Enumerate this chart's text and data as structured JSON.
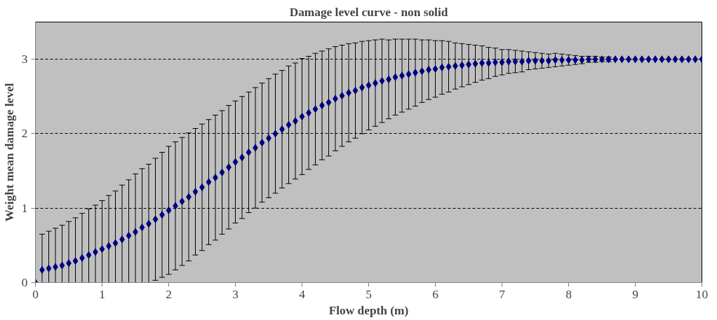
{
  "chart_data": {
    "type": "scatter",
    "title": "Damage level curve - non solid",
    "xlabel": "Flow depth (m)",
    "ylabel": "Weight mean damage level",
    "x": [
      0,
      0.1,
      0.2,
      0.3,
      0.4,
      0.5,
      0.6,
      0.7,
      0.8,
      0.9,
      1,
      1.1,
      1.2,
      1.3,
      1.4,
      1.5,
      1.6,
      1.7,
      1.8,
      1.9,
      2,
      2.1,
      2.2,
      2.3,
      2.4,
      2.5,
      2.6,
      2.7,
      2.8,
      2.9,
      3,
      3.1,
      3.2,
      3.3,
      3.4,
      3.5,
      3.6,
      3.7,
      3.8,
      3.9,
      4,
      4.1,
      4.2,
      4.3,
      4.4,
      4.5,
      4.6,
      4.7,
      4.8,
      4.9,
      5,
      5.1,
      5.2,
      5.3,
      5.4,
      5.5,
      5.6,
      5.7,
      5.8,
      5.9,
      6,
      6.1,
      6.2,
      6.3,
      6.4,
      6.5,
      6.6,
      6.7,
      6.8,
      6.9,
      7,
      7.1,
      7.2,
      7.3,
      7.4,
      7.5,
      7.6,
      7.7,
      7.8,
      7.9,
      8,
      8.1,
      8.2,
      8.3,
      8.4,
      8.5,
      8.6,
      8.7,
      8.8,
      8.9,
      9,
      9.1,
      9.2,
      9.3,
      9.4,
      9.5,
      9.6,
      9.7,
      9.8,
      9.9,
      10
    ],
    "series": [
      {
        "color": "#000080",
        "values": [
          0,
          0.17,
          0.19,
          0.21,
          0.23,
          0.26,
          0.29,
          0.33,
          0.37,
          0.41,
          0.45,
          0.49,
          0.53,
          0.58,
          0.63,
          0.68,
          0.74,
          0.79,
          0.85,
          0.91,
          0.97,
          1.03,
          1.09,
          1.15,
          1.22,
          1.28,
          1.35,
          1.41,
          1.48,
          1.55,
          1.62,
          1.68,
          1.75,
          1.81,
          1.88,
          1.94,
          2.0,
          2.06,
          2.12,
          2.17,
          2.23,
          2.28,
          2.33,
          2.38,
          2.42,
          2.47,
          2.51,
          2.55,
          2.58,
          2.62,
          2.65,
          2.68,
          2.71,
          2.73,
          2.76,
          2.78,
          2.8,
          2.82,
          2.84,
          2.86,
          2.87,
          2.89,
          2.9,
          2.91,
          2.92,
          2.93,
          2.94,
          2.95,
          2.95,
          2.96,
          2.96,
          2.97,
          2.97,
          2.97,
          2.98,
          2.98,
          2.98,
          2.98,
          2.99,
          2.99,
          2.99,
          2.99,
          2.99,
          3.0,
          3.0,
          3.0,
          3.0,
          3.0,
          3.0,
          3.0,
          3.0,
          3.0,
          3.0,
          3.0,
          3.0,
          3.0,
          3.0,
          3.0,
          3.0,
          3.0,
          3.0
        ],
        "errors": [
          null,
          [
            0,
            0.65
          ],
          [
            0,
            0.69
          ],
          [
            0,
            0.73
          ],
          [
            0,
            0.77
          ],
          [
            0,
            0.82
          ],
          [
            0,
            0.87
          ],
          [
            0,
            0.93
          ],
          [
            0,
            0.99
          ],
          [
            0,
            1.04
          ],
          [
            0,
            1.1
          ],
          [
            0,
            1.17
          ],
          [
            0,
            1.23
          ],
          [
            0,
            1.31
          ],
          [
            0,
            1.38
          ],
          [
            0,
            1.46
          ],
          [
            0,
            1.53
          ],
          [
            0,
            1.59
          ],
          [
            0.03,
            1.67
          ],
          [
            0.07,
            1.75
          ],
          [
            0.11,
            1.83
          ],
          [
            0.17,
            1.89
          ],
          [
            0.23,
            1.95
          ],
          [
            0.29,
            2.01
          ],
          [
            0.37,
            2.07
          ],
          [
            0.43,
            2.13
          ],
          [
            0.51,
            2.19
          ],
          [
            0.57,
            2.25
          ],
          [
            0.65,
            2.31
          ],
          [
            0.72,
            2.38
          ],
          [
            0.8,
            2.44
          ],
          [
            0.86,
            2.5
          ],
          [
            0.94,
            2.56
          ],
          [
            1.0,
            2.62
          ],
          [
            1.08,
            2.68
          ],
          [
            1.14,
            2.74
          ],
          [
            1.2,
            2.8
          ],
          [
            1.27,
            2.85
          ],
          [
            1.33,
            2.91
          ],
          [
            1.39,
            2.95
          ],
          [
            1.45,
            3.01
          ],
          [
            1.52,
            3.04
          ],
          [
            1.58,
            3.08
          ],
          [
            1.65,
            3.11
          ],
          [
            1.7,
            3.14
          ],
          [
            1.77,
            3.17
          ],
          [
            1.83,
            3.19
          ],
          [
            1.89,
            3.21
          ],
          [
            1.94,
            3.22
          ],
          [
            2.0,
            3.24
          ],
          [
            2.05,
            3.25
          ],
          [
            2.1,
            3.26
          ],
          [
            2.15,
            3.27
          ],
          [
            2.2,
            3.26
          ],
          [
            2.25,
            3.27
          ],
          [
            2.29,
            3.27
          ],
          [
            2.33,
            3.27
          ],
          [
            2.37,
            3.27
          ],
          [
            2.42,
            3.26
          ],
          [
            2.46,
            3.26
          ],
          [
            2.49,
            3.25
          ],
          [
            2.53,
            3.25
          ],
          [
            2.56,
            3.24
          ],
          [
            2.6,
            3.22
          ],
          [
            2.63,
            3.21
          ],
          [
            2.66,
            3.2
          ],
          [
            2.69,
            3.19
          ],
          [
            2.72,
            3.18
          ],
          [
            2.74,
            3.16
          ],
          [
            2.77,
            3.15
          ],
          [
            2.79,
            3.13
          ],
          [
            2.81,
            3.13
          ],
          [
            2.82,
            3.12
          ],
          [
            2.83,
            3.11
          ],
          [
            2.86,
            3.1
          ],
          [
            2.87,
            3.09
          ],
          [
            2.88,
            3.08
          ],
          [
            2.89,
            3.07
          ],
          [
            2.9,
            3.08
          ],
          [
            2.91,
            3.07
          ],
          [
            2.92,
            3.06
          ],
          [
            2.93,
            3.05
          ],
          [
            2.94,
            3.04
          ],
          [
            2.96,
            3.04
          ],
          [
            2.96,
            3.04
          ],
          [
            2.97,
            3.03
          ],
          [
            2.97,
            3.03
          ],
          null,
          null,
          null,
          null,
          null,
          null,
          null,
          null,
          null,
          null,
          null,
          null,
          null,
          null
        ]
      }
    ],
    "xlim": [
      0,
      10
    ],
    "xticks": [
      0,
      1,
      2,
      3,
      4,
      5,
      6,
      7,
      8,
      9,
      10
    ],
    "ylim": [
      0,
      3.5
    ],
    "yticks": [
      0,
      1,
      2,
      3
    ],
    "grid": "y",
    "marker": "diamond"
  }
}
